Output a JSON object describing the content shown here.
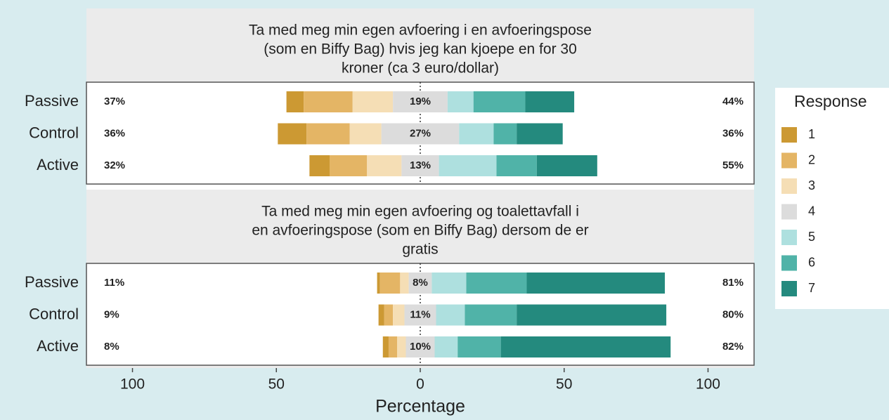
{
  "chart_data": {
    "type": "likert",
    "xlabel": "Percentage",
    "xlim": [
      -116,
      116
    ],
    "xticks": [
      {
        "value": -100,
        "label": "100"
      },
      {
        "value": -50,
        "label": "50"
      },
      0,
      50,
      100
    ],
    "legend": {
      "title": "Response",
      "position": "right"
    },
    "series": [
      {
        "name": "1",
        "color": "#cc9933"
      },
      {
        "name": "2",
        "color": "#e4b565"
      },
      {
        "name": "3",
        "color": "#f5deb5"
      },
      {
        "name": "4",
        "color": "#dcdcdc"
      },
      {
        "name": "5",
        "color": "#aee0df"
      },
      {
        "name": "6",
        "color": "#50b3a8"
      },
      {
        "name": "7",
        "color": "#248a7e"
      }
    ],
    "panels": [
      {
        "title": [
          "Ta med meg min egen avfoering i en avfoeringspose",
          "(som en Biffy Bag) hvis jeg kan kjoepe en for 30",
          "kroner (ca 3 euro/dollar)"
        ],
        "categories": [
          "Passive",
          "Control",
          "Active"
        ],
        "values": [
          [
            6,
            17,
            14,
            19,
            9,
            18,
            17
          ],
          [
            10,
            15,
            11,
            27,
            12,
            8,
            16
          ],
          [
            7,
            13,
            12,
            13,
            20,
            14,
            21
          ]
        ],
        "low": {
          "values": [
            37,
            36,
            32
          ],
          "value_labels": [
            "37%",
            "36%",
            "32%"
          ]
        },
        "neutral": {
          "values": [
            19,
            27,
            13
          ],
          "value_labels": [
            "19%",
            "27%",
            "13%"
          ]
        },
        "high": {
          "values": [
            44,
            36,
            55
          ],
          "value_labels": [
            "44%",
            "36%",
            "55%"
          ]
        }
      },
      {
        "title": [
          "Ta med meg min egen avfoering og toalettavfall i",
          "en avfoeringspose (som en Biffy Bag) dersom de er",
          "gratis"
        ],
        "categories": [
          "Passive",
          "Control",
          "Active"
        ],
        "values": [
          [
            1,
            7,
            3,
            8,
            12,
            21,
            48
          ],
          [
            2,
            3,
            4,
            11,
            10,
            18,
            52
          ],
          [
            2,
            3,
            3,
            10,
            8,
            15,
            59
          ]
        ],
        "low": {
          "values": [
            11,
            9,
            8
          ],
          "value_labels": [
            "11%",
            "9%",
            "8%"
          ]
        },
        "neutral": {
          "values": [
            8,
            11,
            10
          ],
          "value_labels": [
            "8%",
            "11%",
            "10%"
          ]
        },
        "high": {
          "values": [
            81,
            80,
            82
          ],
          "value_labels": [
            "81%",
            "80%",
            "82%"
          ]
        }
      }
    ]
  }
}
